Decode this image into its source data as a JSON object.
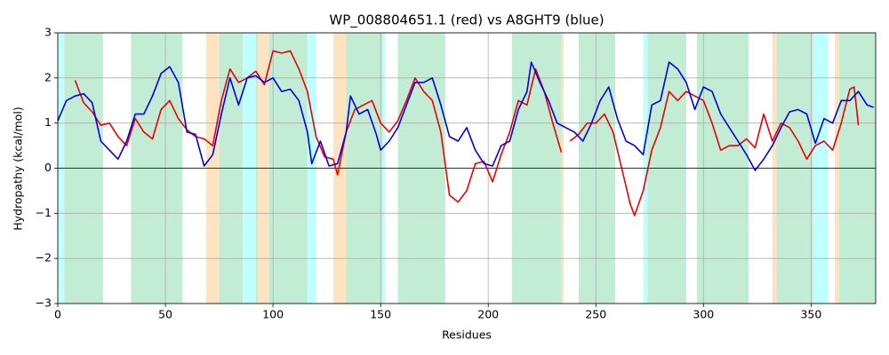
{
  "chart_data": {
    "type": "line",
    "title": "WP_008804651.1 (red) vs A8GHT9 (blue)",
    "xlabel": "Residues",
    "ylabel": "Hydropathy (kcal/mol)",
    "xlim": [
      0,
      380
    ],
    "ylim": [
      -3,
      3
    ],
    "xticks": [
      0,
      50,
      100,
      150,
      200,
      250,
      300,
      350
    ],
    "yticks": [
      {
        "value": -3,
        "label": "−3"
      },
      {
        "value": -2,
        "label": "−2"
      },
      {
        "value": -1,
        "label": "−1"
      },
      0,
      1,
      2,
      3
    ],
    "grid": true,
    "hlines": [
      0
    ],
    "regions": [
      {
        "start": 0,
        "end": 3,
        "color": "#c0ffff"
      },
      {
        "start": 3,
        "end": 21,
        "color": "#c2ecd3"
      },
      {
        "start": 34,
        "end": 58,
        "color": "#c2ecd3"
      },
      {
        "start": 69,
        "end": 75,
        "color": "#fde3bf"
      },
      {
        "start": 75,
        "end": 86,
        "color": "#c2ecd3"
      },
      {
        "start": 86,
        "end": 92,
        "color": "#c0ffff"
      },
      {
        "start": 92,
        "end": 93,
        "color": "#c2ecd3"
      },
      {
        "start": 93,
        "end": 98,
        "color": "#fde3bf"
      },
      {
        "start": 98,
        "end": 116,
        "color": "#c2ecd3"
      },
      {
        "start": 116,
        "end": 120,
        "color": "#c0ffff"
      },
      {
        "start": 128,
        "end": 134,
        "color": "#fde3bf"
      },
      {
        "start": 134,
        "end": 151,
        "color": "#c2ecd3"
      },
      {
        "start": 151,
        "end": 152,
        "color": "#c0ffff"
      },
      {
        "start": 158,
        "end": 180,
        "color": "#c2ecd3"
      },
      {
        "start": 211,
        "end": 234,
        "color": "#c2ecd3"
      },
      {
        "start": 234,
        "end": 235,
        "color": "#fde3bf"
      },
      {
        "start": 242,
        "end": 259,
        "color": "#c2ecd3"
      },
      {
        "start": 272,
        "end": 274,
        "color": "#c0ffff"
      },
      {
        "start": 274,
        "end": 292,
        "color": "#c2ecd3"
      },
      {
        "start": 297,
        "end": 321,
        "color": "#c2ecd3"
      },
      {
        "start": 332,
        "end": 334,
        "color": "#fde3bf"
      },
      {
        "start": 334,
        "end": 351,
        "color": "#c2ecd3"
      },
      {
        "start": 351,
        "end": 358,
        "color": "#c0ffff"
      },
      {
        "start": 361,
        "end": 363,
        "color": "#fde3bf"
      },
      {
        "start": 363,
        "end": 380,
        "color": "#c2ecd3"
      }
    ],
    "series": [
      {
        "color": "#ee0000",
        "x": [
          8,
          12,
          16,
          20,
          24,
          28,
          32,
          36,
          40,
          44,
          48,
          52,
          56,
          60,
          64,
          68,
          72,
          76,
          80,
          84,
          88,
          92,
          96,
          100,
          104,
          108,
          112,
          116,
          120,
          124,
          128,
          130,
          134,
          138,
          142,
          146,
          150,
          154,
          158,
          162,
          166,
          170,
          174,
          178,
          182,
          186,
          190,
          194,
          198,
          202,
          206,
          210,
          214,
          218,
          222,
          226,
          230,
          234
        ],
        "values": [
          1.95,
          1.45,
          1.25,
          0.95,
          1.0,
          0.7,
          0.5,
          1.1,
          0.8,
          0.65,
          1.3,
          1.5,
          1.1,
          0.85,
          0.7,
          0.65,
          0.5,
          1.5,
          2.2,
          1.9,
          2.0,
          2.15,
          1.85,
          2.6,
          2.55,
          2.6,
          2.2,
          1.7,
          0.7,
          0.25,
          0.2,
          -0.15,
          0.8,
          1.3,
          1.4,
          1.5,
          1.0,
          0.8,
          1.05,
          1.5,
          2.0,
          1.7,
          1.5,
          0.8,
          -0.6,
          -0.75,
          -0.5,
          0.1,
          0.15,
          -0.3,
          0.3,
          0.8,
          1.5,
          1.4,
          2.2,
          1.7,
          1.0,
          0.35
        ]
      },
      {
        "color": "#ee0000",
        "x": [
          238,
          242,
          246,
          250,
          254,
          258,
          262,
          266,
          268,
          272,
          276,
          280,
          284,
          288,
          292,
          296,
          300,
          304,
          308,
          312,
          316,
          320,
          324,
          328,
          332,
          336,
          340,
          344,
          348,
          352,
          356,
          360,
          364,
          368,
          370,
          372
        ],
        "values": [
          0.6,
          0.75,
          1.0,
          1.0,
          1.2,
          0.8,
          0.0,
          -0.8,
          -1.05,
          -0.5,
          0.4,
          0.9,
          1.7,
          1.5,
          1.7,
          1.6,
          1.5,
          1.0,
          0.4,
          0.5,
          0.5,
          0.65,
          0.45,
          1.2,
          0.6,
          1.0,
          0.9,
          0.6,
          0.2,
          0.5,
          0.6,
          0.4,
          1.0,
          1.75,
          1.8,
          0.95
        ]
      },
      {
        "color": "#0000ee",
        "x": [
          0,
          4,
          8,
          12,
          16,
          20,
          24,
          28,
          32,
          36,
          40,
          44,
          48,
          52,
          56,
          60,
          64,
          68,
          72,
          76,
          80,
          84,
          88,
          92,
          96,
          100,
          104,
          108,
          112,
          116,
          118,
          122,
          126,
          130,
          134,
          136,
          140,
          144,
          148,
          150,
          154,
          158,
          162,
          166,
          170,
          174,
          178,
          182,
          186,
          190,
          194,
          198,
          202,
          206,
          210,
          214,
          218,
          220,
          224,
          228,
          232,
          236,
          240,
          244,
          248,
          252,
          256,
          260,
          264,
          268,
          272,
          276,
          280,
          284,
          288,
          292,
          296,
          300,
          304,
          308,
          312,
          316,
          320,
          324,
          328,
          332,
          336,
          340,
          344,
          348,
          352,
          356,
          360,
          364,
          368,
          372,
          376,
          379
        ],
        "values": [
          1.05,
          1.5,
          1.6,
          1.65,
          1.45,
          0.6,
          0.4,
          0.2,
          0.6,
          1.2,
          1.2,
          1.6,
          2.1,
          2.25,
          1.9,
          0.8,
          0.75,
          0.05,
          0.3,
          1.2,
          2.0,
          1.4,
          2.0,
          2.05,
          1.9,
          2.0,
          1.7,
          1.75,
          1.5,
          0.8,
          0.1,
          0.6,
          0.05,
          0.1,
          0.8,
          1.6,
          1.2,
          1.3,
          0.75,
          0.4,
          0.6,
          0.9,
          1.4,
          1.9,
          1.9,
          2.0,
          1.4,
          0.7,
          0.6,
          0.9,
          0.4,
          0.1,
          0.05,
          0.5,
          0.6,
          1.3,
          1.7,
          2.35,
          1.9,
          1.5,
          1.0,
          0.9,
          0.8,
          0.6,
          1.0,
          1.5,
          1.8,
          1.1,
          0.6,
          0.5,
          0.3,
          1.4,
          1.5,
          2.35,
          2.2,
          1.9,
          1.3,
          1.8,
          1.7,
          1.2,
          0.9,
          0.6,
          0.3,
          -0.05,
          0.2,
          0.5,
          0.9,
          1.25,
          1.3,
          1.2,
          0.55,
          1.1,
          1.0,
          1.5,
          1.5,
          1.7,
          1.4,
          1.35
        ]
      }
    ]
  }
}
